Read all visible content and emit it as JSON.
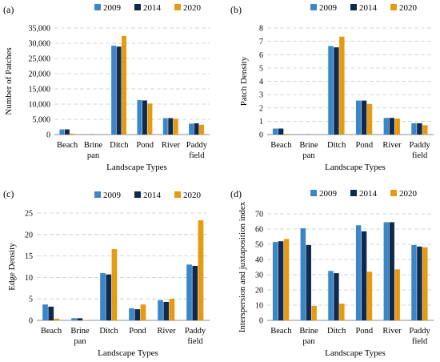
{
  "series_colors": [
    "#3a86c8",
    "#0f2a4e",
    "#e59a12"
  ],
  "chart_data": [
    {
      "panel": "(a)",
      "type": "bar",
      "categories": [
        [
          "Beach"
        ],
        [
          "Brine",
          "pan"
        ],
        [
          "Ditch"
        ],
        [
          "Pond"
        ],
        [
          "River"
        ],
        [
          "Paddy",
          "field"
        ]
      ],
      "series": [
        {
          "name": "2009",
          "values": [
            1700,
            50,
            29200,
            11300,
            5400,
            3600
          ]
        },
        {
          "name": "2014",
          "values": [
            1700,
            50,
            28900,
            11200,
            5400,
            3700
          ]
        },
        {
          "name": "2020",
          "values": [
            300,
            0,
            32400,
            10200,
            5200,
            3200
          ]
        }
      ],
      "xlabel": "Landscape Types",
      "ylabel": "Number of Patches",
      "ylim": [
        0,
        35000
      ],
      "yticks": [
        "0",
        "5,000",
        "10,000",
        "15,000",
        "20,000",
        "25,000",
        "30,000",
        "35,000"
      ],
      "grid": true,
      "legend": "top"
    },
    {
      "panel": "(b)",
      "type": "bar",
      "categories": [
        [
          "Beach"
        ],
        [
          "Brine",
          "pan"
        ],
        [
          "Ditch"
        ],
        [
          "Pond"
        ],
        [
          "River"
        ],
        [
          "Paddy",
          "field"
        ]
      ],
      "series": [
        {
          "name": "2009",
          "values": [
            0.45,
            0.01,
            6.65,
            2.55,
            1.25,
            0.85
          ]
        },
        {
          "name": "2014",
          "values": [
            0.45,
            0.01,
            6.55,
            2.55,
            1.25,
            0.85
          ]
        },
        {
          "name": "2020",
          "values": [
            0.05,
            0,
            7.35,
            2.3,
            1.2,
            0.7
          ]
        }
      ],
      "xlabel": "Landscape Types",
      "ylabel": "Patch Density",
      "ylim": [
        0,
        8
      ],
      "yticks": [
        "0",
        "1",
        "2",
        "3",
        "4",
        "5",
        "6",
        "7",
        "8"
      ],
      "grid": true,
      "legend": "top"
    },
    {
      "panel": "(c)",
      "type": "bar",
      "categories": [
        [
          "Beach"
        ],
        [
          "Brine",
          "pan"
        ],
        [
          "Ditch"
        ],
        [
          "Pond"
        ],
        [
          "River"
        ],
        [
          "Paddy",
          "field"
        ]
      ],
      "series": [
        {
          "name": "2009",
          "values": [
            3.7,
            0.5,
            11,
            2.8,
            4.7,
            13
          ]
        },
        {
          "name": "2014",
          "values": [
            3.2,
            0.5,
            10.7,
            2.6,
            4.3,
            12.7
          ]
        },
        {
          "name": "2020",
          "values": [
            0.4,
            0.1,
            16.6,
            3.7,
            5,
            23.3
          ]
        }
      ],
      "xlabel": "Landscape Types",
      "ylabel": "Edge Density",
      "ylim": [
        0,
        25
      ],
      "yticks": [
        "0",
        "5",
        "10",
        "15",
        "20",
        "25"
      ],
      "grid": true,
      "legend": "top"
    },
    {
      "panel": "(d)",
      "type": "bar",
      "categories": [
        [
          "Beach"
        ],
        [
          "Brine",
          "pan"
        ],
        [
          "Ditch"
        ],
        [
          "Pond"
        ],
        [
          "River"
        ],
        [
          "Paddy",
          "field"
        ]
      ],
      "series": [
        {
          "name": "2009",
          "values": [
            51.5,
            60.5,
            32.5,
            62.5,
            64.5,
            49.5
          ]
        },
        {
          "name": "2014",
          "values": [
            52,
            49.5,
            31,
            58.5,
            64.5,
            48.5
          ]
        },
        {
          "name": "2020",
          "values": [
            53.5,
            9.5,
            11,
            32,
            33.5,
            48
          ]
        }
      ],
      "xlabel": "Landscape Types",
      "ylabel": "Interspersion and juxtaposition index",
      "ylim": [
        0,
        70
      ],
      "yticks": [
        "0",
        "10",
        "20",
        "30",
        "40",
        "50",
        "60",
        "70"
      ],
      "grid": true,
      "legend": "top"
    }
  ]
}
